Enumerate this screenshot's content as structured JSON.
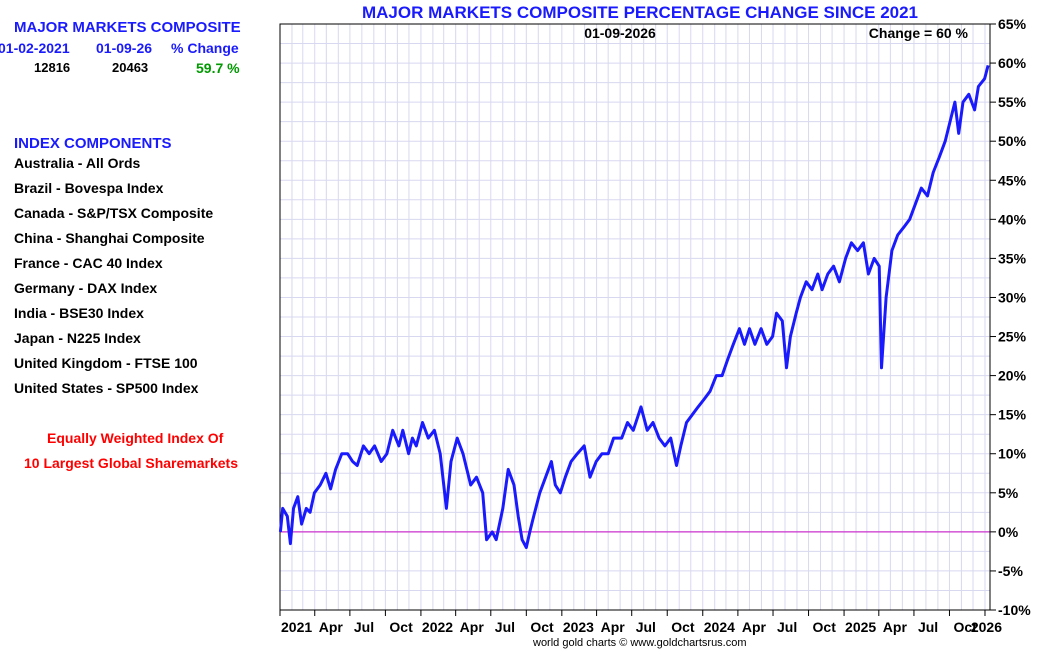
{
  "sidebar": {
    "composite_title": "MAJOR MARKETS COMPOSITE",
    "col_start_date": "01-02-2021",
    "col_end_date": "01-09-26",
    "col_change": "% Change",
    "start_value": "12816",
    "end_value": "20463",
    "change_value": "59.7 %",
    "components_title": "INDEX COMPONENTS",
    "components": [
      "Australia - All Ords",
      "Brazil - Bovespa Index",
      "Canada - S&P/TSX Composite",
      "China - Shanghai Composite",
      "France - CAC 40 Index",
      "Germany - DAX Index",
      "India - BSE30 Index",
      "Japan - N225 Index",
      "United Kingdom - FTSE 100",
      "United States - SP500 Index"
    ],
    "note_line1": "Equally Weighted Index Of",
    "note_line2": "10 Largest Global Sharemarkets"
  },
  "footer": "world gold charts © www.goldchartsrus.com",
  "colors": {
    "title": "#1a1aff",
    "series": "#1a1aff",
    "zero_line": "#cc33cc",
    "grid": "#d8d8f0",
    "positive": "#009900",
    "note": "#ff0000"
  },
  "chart_data": {
    "type": "line",
    "title": "MAJOR MARKETS COMPOSITE PERCENTAGE CHANGE SINCE 2021",
    "date_label": "01-09-2026",
    "change_label": "Change = 60 %",
    "xlabel": "",
    "ylabel": "",
    "ylim": [
      -10,
      65
    ],
    "yticks": [
      -10,
      -5,
      0,
      5,
      10,
      15,
      20,
      25,
      30,
      35,
      40,
      45,
      50,
      55,
      60,
      65
    ],
    "ytick_labels": [
      "-10%",
      "-5%",
      "0%",
      "5%",
      "10%",
      "15%",
      "20%",
      "25%",
      "30%",
      "35%",
      "40%",
      "45%",
      "50%",
      "55%",
      "60%",
      "65%"
    ],
    "xlim": [
      "2021-01",
      "2026-01"
    ],
    "xticks": [
      {
        "x": "2021-01",
        "label": "2021"
      },
      {
        "x": "2021-04",
        "label": "Apr"
      },
      {
        "x": "2021-07",
        "label": "Jul"
      },
      {
        "x": "2021-10",
        "label": "Oct"
      },
      {
        "x": "2022-01",
        "label": "2022"
      },
      {
        "x": "2022-04",
        "label": "Apr"
      },
      {
        "x": "2022-07",
        "label": "Jul"
      },
      {
        "x": "2022-10",
        "label": "Oct"
      },
      {
        "x": "2023-01",
        "label": "2023"
      },
      {
        "x": "2023-04",
        "label": "Apr"
      },
      {
        "x": "2023-07",
        "label": "Jul"
      },
      {
        "x": "2023-10",
        "label": "Oct"
      },
      {
        "x": "2024-01",
        "label": "2024"
      },
      {
        "x": "2024-04",
        "label": "Apr"
      },
      {
        "x": "2024-07",
        "label": "Jul"
      },
      {
        "x": "2024-10",
        "label": "Oct"
      },
      {
        "x": "2025-01",
        "label": "2025"
      },
      {
        "x": "2025-04",
        "label": "Apr"
      },
      {
        "x": "2025-07",
        "label": "Jul"
      },
      {
        "x": "2025-10",
        "label": "Oct"
      },
      {
        "x": "2026-01",
        "label": "2026"
      }
    ],
    "grid": true,
    "zero_line": true,
    "series": [
      {
        "values": [
          [
            "2021-01-02",
            0
          ],
          [
            "2021-01-08",
            3
          ],
          [
            "2021-01-20",
            2
          ],
          [
            "2021-01-28",
            -1.5
          ],
          [
            "2021-02-05",
            3
          ],
          [
            "2021-02-16",
            4.5
          ],
          [
            "2021-02-26",
            1
          ],
          [
            "2021-03-10",
            3
          ],
          [
            "2021-03-20",
            2.5
          ],
          [
            "2021-03-31",
            5
          ],
          [
            "2021-04-15",
            6
          ],
          [
            "2021-04-30",
            7.5
          ],
          [
            "2021-05-12",
            5.5
          ],
          [
            "2021-05-25",
            8
          ],
          [
            "2021-06-10",
            10
          ],
          [
            "2021-06-25",
            10
          ],
          [
            "2021-07-08",
            9
          ],
          [
            "2021-07-20",
            8.5
          ],
          [
            "2021-08-05",
            11
          ],
          [
            "2021-08-20",
            10
          ],
          [
            "2021-09-03",
            11
          ],
          [
            "2021-09-20",
            9
          ],
          [
            "2021-10-05",
            10
          ],
          [
            "2021-10-20",
            13
          ],
          [
            "2021-11-05",
            11
          ],
          [
            "2021-11-15",
            13
          ],
          [
            "2021-11-30",
            10
          ],
          [
            "2021-12-10",
            12
          ],
          [
            "2021-12-20",
            11
          ],
          [
            "2022-01-05",
            14
          ],
          [
            "2022-01-20",
            12
          ],
          [
            "2022-02-05",
            13
          ],
          [
            "2022-02-20",
            10
          ],
          [
            "2022-03-08",
            3
          ],
          [
            "2022-03-20",
            9
          ],
          [
            "2022-04-05",
            12
          ],
          [
            "2022-04-20",
            10
          ],
          [
            "2022-05-10",
            6
          ],
          [
            "2022-05-25",
            7
          ],
          [
            "2022-06-10",
            5
          ],
          [
            "2022-06-20",
            -1
          ],
          [
            "2022-07-05",
            0
          ],
          [
            "2022-07-15",
            -1
          ],
          [
            "2022-08-01",
            3
          ],
          [
            "2022-08-15",
            8
          ],
          [
            "2022-08-30",
            6
          ],
          [
            "2022-09-10",
            2
          ],
          [
            "2022-09-20",
            -1
          ],
          [
            "2022-10-01",
            -2
          ],
          [
            "2022-10-10",
            0
          ],
          [
            "2022-10-20",
            2
          ],
          [
            "2022-11-05",
            5
          ],
          [
            "2022-11-20",
            7
          ],
          [
            "2022-12-05",
            9
          ],
          [
            "2022-12-15",
            6
          ],
          [
            "2022-12-28",
            5
          ],
          [
            "2023-01-10",
            7
          ],
          [
            "2023-01-25",
            9
          ],
          [
            "2023-02-10",
            10
          ],
          [
            "2023-02-28",
            11
          ],
          [
            "2023-03-15",
            7
          ],
          [
            "2023-03-31",
            9
          ],
          [
            "2023-04-15",
            10
          ],
          [
            "2023-05-01",
            10
          ],
          [
            "2023-05-15",
            12
          ],
          [
            "2023-06-05",
            12
          ],
          [
            "2023-06-20",
            14
          ],
          [
            "2023-07-05",
            13
          ],
          [
            "2023-07-25",
            16
          ],
          [
            "2023-08-10",
            13
          ],
          [
            "2023-08-25",
            14
          ],
          [
            "2023-09-10",
            12
          ],
          [
            "2023-09-25",
            11
          ],
          [
            "2023-10-10",
            12
          ],
          [
            "2023-10-25",
            8.5
          ],
          [
            "2023-11-05",
            11
          ],
          [
            "2023-11-20",
            14
          ],
          [
            "2023-12-05",
            15
          ],
          [
            "2023-12-20",
            16
          ],
          [
            "2024-01-05",
            17
          ],
          [
            "2024-01-20",
            18
          ],
          [
            "2024-02-05",
            20
          ],
          [
            "2024-02-20",
            20
          ],
          [
            "2024-03-05",
            22
          ],
          [
            "2024-03-20",
            24
          ],
          [
            "2024-04-05",
            26
          ],
          [
            "2024-04-18",
            24
          ],
          [
            "2024-05-01",
            26
          ],
          [
            "2024-05-15",
            24
          ],
          [
            "2024-05-31",
            26
          ],
          [
            "2024-06-15",
            24
          ],
          [
            "2024-06-30",
            25
          ],
          [
            "2024-07-10",
            28
          ],
          [
            "2024-07-25",
            27
          ],
          [
            "2024-08-05",
            21
          ],
          [
            "2024-08-15",
            25
          ],
          [
            "2024-08-30",
            28
          ],
          [
            "2024-09-10",
            30
          ],
          [
            "2024-09-25",
            32
          ],
          [
            "2024-10-10",
            31
          ],
          [
            "2024-10-25",
            33
          ],
          [
            "2024-11-05",
            31
          ],
          [
            "2024-11-20",
            33
          ],
          [
            "2024-12-05",
            34
          ],
          [
            "2024-12-20",
            32
          ],
          [
            "2025-01-05",
            35
          ],
          [
            "2025-01-20",
            37
          ],
          [
            "2025-02-05",
            36
          ],
          [
            "2025-02-20",
            37
          ],
          [
            "2025-03-05",
            33
          ],
          [
            "2025-03-20",
            35
          ],
          [
            "2025-04-02",
            34
          ],
          [
            "2025-04-08",
            21
          ],
          [
            "2025-04-20",
            30
          ],
          [
            "2025-05-05",
            36
          ],
          [
            "2025-05-20",
            38
          ],
          [
            "2025-06-05",
            39
          ],
          [
            "2025-06-20",
            40
          ],
          [
            "2025-07-05",
            42
          ],
          [
            "2025-07-20",
            44
          ],
          [
            "2025-08-05",
            43
          ],
          [
            "2025-08-20",
            46
          ],
          [
            "2025-09-05",
            48
          ],
          [
            "2025-09-20",
            50
          ],
          [
            "2025-10-05",
            53
          ],
          [
            "2025-10-15",
            55
          ],
          [
            "2025-10-25",
            51
          ],
          [
            "2025-11-05",
            55
          ],
          [
            "2025-11-20",
            56
          ],
          [
            "2025-12-05",
            54
          ],
          [
            "2025-12-15",
            57
          ],
          [
            "2025-12-31",
            58
          ],
          [
            "2026-01-09",
            59.7
          ]
        ]
      }
    ]
  }
}
